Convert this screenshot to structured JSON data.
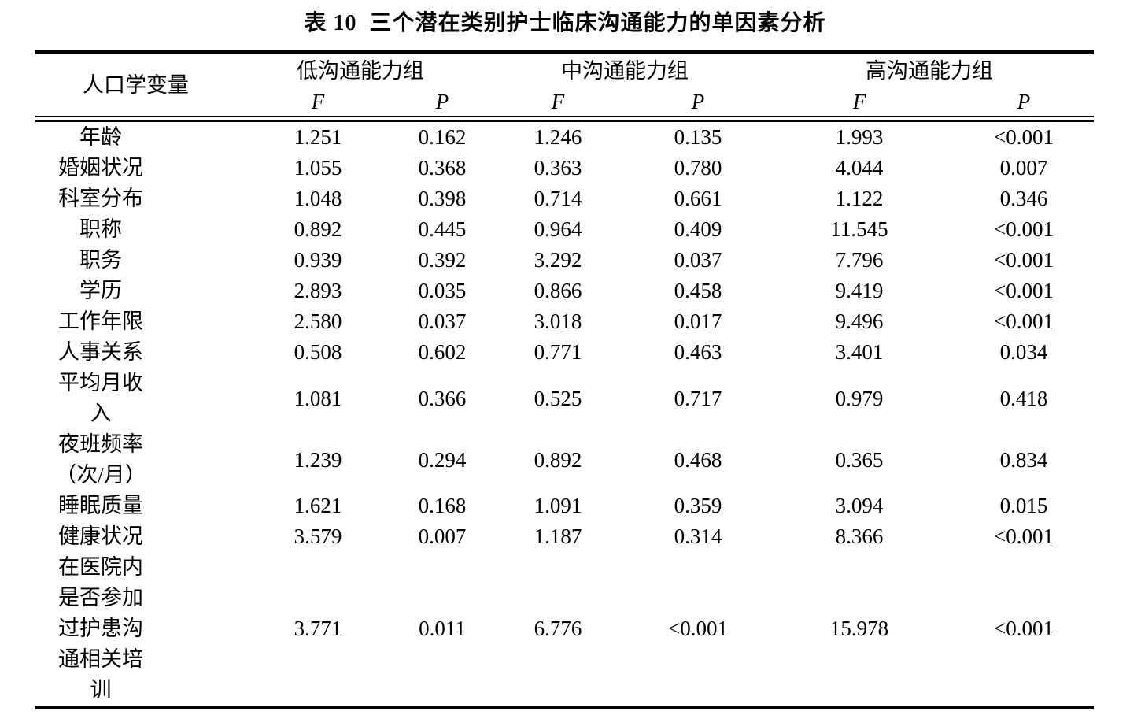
{
  "title": "表 10  三个潜在类别护士临床沟通能力的单因素分析",
  "table": {
    "variable_header": "人口学变量",
    "groups": [
      {
        "label": "低沟通能力组"
      },
      {
        "label": "中沟通能力组"
      },
      {
        "label": "高沟通能力组"
      }
    ],
    "stat_headers": {
      "f": "F",
      "p": "P"
    },
    "rows": [
      {
        "label": "年龄",
        "values": [
          "1.251",
          "0.162",
          "1.246",
          "0.135",
          "1.993",
          "<0.001"
        ]
      },
      {
        "label": "婚姻状况",
        "values": [
          "1.055",
          "0.368",
          "0.363",
          "0.780",
          "4.044",
          "0.007"
        ]
      },
      {
        "label": "科室分布",
        "values": [
          "1.048",
          "0.398",
          "0.714",
          "0.661",
          "1.122",
          "0.346"
        ]
      },
      {
        "label": "职称",
        "values": [
          "0.892",
          "0.445",
          "0.964",
          "0.409",
          "11.545",
          "<0.001"
        ]
      },
      {
        "label": "职务",
        "values": [
          "0.939",
          "0.392",
          "3.292",
          "0.037",
          "7.796",
          "<0.001"
        ]
      },
      {
        "label": "学历",
        "values": [
          "2.893",
          "0.035",
          "0.866",
          "0.458",
          "9.419",
          "<0.001"
        ]
      },
      {
        "label": "工作年限",
        "values": [
          "2.580",
          "0.037",
          "3.018",
          "0.017",
          "9.496",
          "<0.001"
        ]
      },
      {
        "label": "人事关系",
        "values": [
          "0.508",
          "0.602",
          "0.771",
          "0.463",
          "3.401",
          "0.034"
        ]
      },
      {
        "label": "平均月收\n入",
        "values": [
          "1.081",
          "0.366",
          "0.525",
          "0.717",
          "0.979",
          "0.418"
        ]
      },
      {
        "label": "夜班频率\n（次/月）",
        "values": [
          "1.239",
          "0.294",
          "0.892",
          "0.468",
          "0.365",
          "0.834"
        ]
      },
      {
        "label": "睡眠质量",
        "values": [
          "1.621",
          "0.168",
          "1.091",
          "0.359",
          "3.094",
          "0.015"
        ]
      },
      {
        "label": "健康状况",
        "values": [
          "3.579",
          "0.007",
          "1.187",
          "0.314",
          "8.366",
          "<0.001"
        ]
      },
      {
        "label": "在医院内\n是否参加\n过护患沟\n通相关培\n训",
        "values": [
          "3.771",
          "0.011",
          "6.776",
          "<0.001",
          "15.978",
          "<0.001"
        ]
      }
    ]
  }
}
